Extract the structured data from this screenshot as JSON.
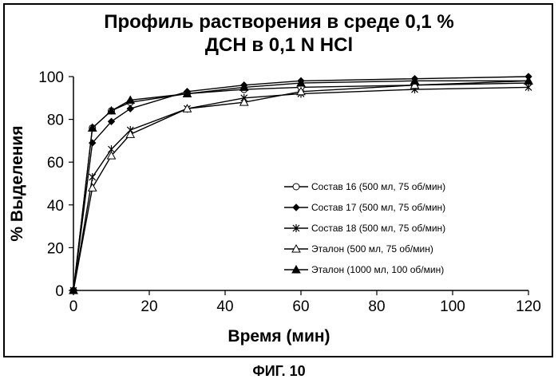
{
  "chart_data": {
    "type": "line",
    "title_line1": "Профиль растворения в среде 0,1 %",
    "title_line2": "ДСН в 0,1 N HCl",
    "xlabel": "Время (мин)",
    "ylabel": "% Выделения",
    "xlim": [
      0,
      120
    ],
    "ylim": [
      0,
      100
    ],
    "xticks": [
      0,
      20,
      40,
      60,
      80,
      100,
      120
    ],
    "yticks": [
      0,
      20,
      40,
      60,
      80,
      100
    ],
    "grid": false,
    "legend_position": "right",
    "series": [
      {
        "name": "Состав 16 (500 мл, 75 об/мин)",
        "marker": "circle-open",
        "x": [
          0,
          5,
          10,
          15,
          30,
          45,
          60,
          90,
          120
        ],
        "y": [
          0,
          76,
          84,
          88,
          92,
          94,
          95,
          96,
          97
        ]
      },
      {
        "name": "Состав 17 (500 мл, 75 об/мин)",
        "marker": "diamond-filled",
        "x": [
          0,
          5,
          10,
          15,
          30,
          45,
          60,
          90,
          120
        ],
        "y": [
          0,
          69,
          79,
          85,
          93,
          96,
          98,
          99,
          100
        ]
      },
      {
        "name": "Состав 18 (500 мл, 75 об/мин)",
        "marker": "star",
        "x": [
          0,
          5,
          10,
          15,
          30,
          45,
          60,
          90,
          120
        ],
        "y": [
          0,
          53,
          66,
          75,
          85,
          90,
          92,
          94,
          95
        ]
      },
      {
        "name": "Эталон (500 мл, 75 об/мин)",
        "marker": "triangle-open",
        "x": [
          0,
          5,
          10,
          15,
          30,
          45,
          60,
          90,
          120
        ],
        "y": [
          0,
          48,
          63,
          73,
          85,
          88,
          93,
          96,
          98
        ]
      },
      {
        "name": "Эталон (1000 мл, 100 об/мин)",
        "marker": "triangle-filled",
        "x": [
          0,
          5,
          10,
          15,
          30,
          45,
          60,
          90,
          120
        ],
        "y": [
          0,
          76,
          84,
          89,
          92,
          95,
          97,
          98,
          98
        ]
      }
    ]
  },
  "caption": "ФИГ. 10"
}
